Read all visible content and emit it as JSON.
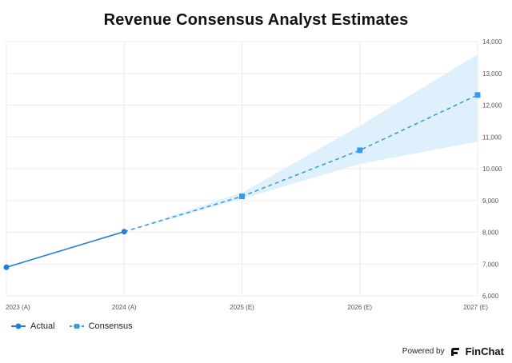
{
  "chart_data": {
    "type": "line",
    "title": "Revenue Consensus Analyst Estimates",
    "categories": [
      "2023 (A)",
      "2024 (A)",
      "2025 (E)",
      "2026 (E)",
      "2027 (E)"
    ],
    "ylim": [
      6000,
      14000
    ],
    "y_ticks": [
      "6,000",
      "7,000",
      "8,000",
      "9,000",
      "10,000",
      "11,000",
      "12,000",
      "13,000",
      "14,000"
    ],
    "y_tick_values": [
      6000,
      7000,
      8000,
      9000,
      10000,
      11000,
      12000,
      13000,
      14000
    ],
    "y_axis_side": "right",
    "grid": true,
    "legend_position": "bottom-left",
    "series": [
      {
        "name": "Actual",
        "values": [
          6900,
          8020,
          null,
          null,
          null
        ],
        "color": "#1f7fd6",
        "style": "solid",
        "marker": "circle"
      },
      {
        "name": "Consensus",
        "values": [
          null,
          8020,
          9130,
          10580,
          12320
        ],
        "color": "#3d9be6",
        "style": "dashed",
        "marker": "square"
      }
    ],
    "range_band": {
      "low": [
        null,
        8020,
        9050,
        10150,
        10850
      ],
      "high": [
        null,
        8020,
        9250,
        11350,
        13600
      ],
      "color": "#dff0fd"
    }
  },
  "footer": {
    "powered_by": "Powered by",
    "brand": "FinChat"
  },
  "icons": {
    "brand_logo": "finchat-logo-icon"
  }
}
